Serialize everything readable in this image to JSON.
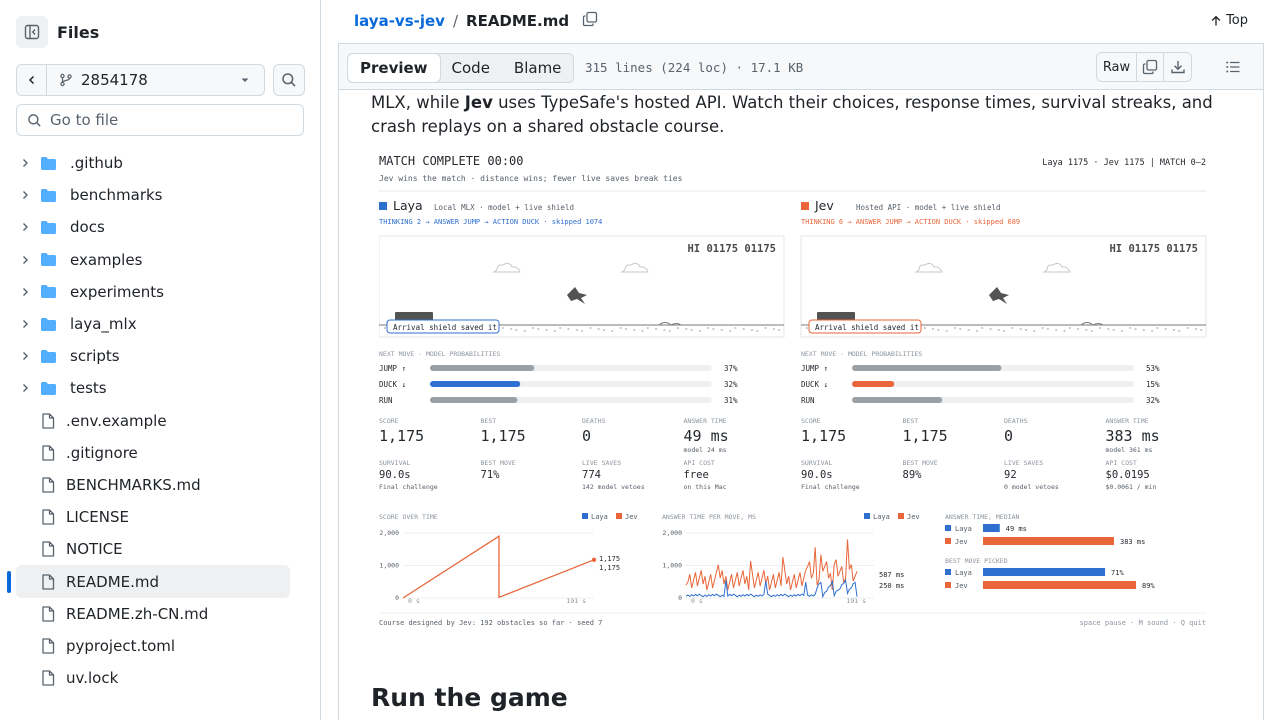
{
  "sidebar": {
    "title": "Files",
    "branch": "2854178",
    "goto_placeholder": "Go to file",
    "items": [
      {
        "label": ".github",
        "type": "dir"
      },
      {
        "label": "benchmarks",
        "type": "dir"
      },
      {
        "label": "docs",
        "type": "dir"
      },
      {
        "label": "examples",
        "type": "dir"
      },
      {
        "label": "experiments",
        "type": "dir"
      },
      {
        "label": "laya_mlx",
        "type": "dir"
      },
      {
        "label": "scripts",
        "type": "dir"
      },
      {
        "label": "tests",
        "type": "dir"
      },
      {
        "label": ".env.example",
        "type": "file"
      },
      {
        "label": ".gitignore",
        "type": "file"
      },
      {
        "label": "BENCHMARKS.md",
        "type": "file"
      },
      {
        "label": "LICENSE",
        "type": "file"
      },
      {
        "label": "NOTICE",
        "type": "file"
      },
      {
        "label": "README.md",
        "type": "file",
        "active": true
      },
      {
        "label": "README.zh-CN.md",
        "type": "file"
      },
      {
        "label": "pyproject.toml",
        "type": "file"
      },
      {
        "label": "uv.lock",
        "type": "file"
      }
    ]
  },
  "header": {
    "repo": "laya-vs-jev",
    "separator": "/",
    "file": "README.md",
    "top_label": "Top"
  },
  "filebar": {
    "tabs": [
      "Preview",
      "Code",
      "Blame"
    ],
    "info": "315 lines (224 loc) · 17.1 KB",
    "raw_label": "Raw"
  },
  "content": {
    "para_part1": "MLX, while ",
    "para_bold": "Jev",
    "para_part2": " uses TypeSafe's hosted API. Watch their choices, response times, survival streaks, and crash replays on a shared obstacle course.",
    "heading": "Run the game"
  },
  "game": {
    "title": "MATCH COMPLETE  00:00",
    "subtitle": "Jev wins the match  ·  distance wins; fewer live saves break ties",
    "scoreline": "Laya 1175  ·  Jev 1175   |  MATCH 0–2",
    "hi": "HI 01175 01175",
    "probs_title": "NEXT MOVE · MODEL PROBABILITIES",
    "footer_left": "Course designed by Jev: 192 obstacles so far · seed 7",
    "footer_right": "space pause · M sound · Q quit",
    "colors": {
      "laya": "#2f6fd0",
      "jev": "#e8663a",
      "gray": "#9aa0a6"
    },
    "players": [
      {
        "name": "Laya",
        "desc": "Local MLX · model + live shield",
        "trace": "THINKING 2  →  ANSWER JUMP  →  ACTION DUCK  ·  skipped 1074",
        "badge": "Arrival shield saved it",
        "probs": [
          {
            "label": "JUMP  ↑",
            "pct": "37%",
            "v": 0.37,
            "hl": false
          },
          {
            "label": "DUCK  ↓",
            "pct": "32%",
            "v": 0.32,
            "hl": true
          },
          {
            "label": "RUN",
            "pct": "31%",
            "v": 0.31,
            "hl": false
          }
        ],
        "stats": [
          {
            "label": "SCORE",
            "value": "1,175",
            "sub": ""
          },
          {
            "label": "BEST",
            "value": "1,175",
            "sub": ""
          },
          {
            "label": "DEATHS",
            "value": "0",
            "sub": ""
          },
          {
            "label": "ANSWER TIME",
            "value": "49 ms",
            "sub": "model 24 ms"
          }
        ],
        "stats2": [
          {
            "label": "SURVIVAL",
            "value": "90.0s",
            "sub": "Final challenge"
          },
          {
            "label": "BEST MOVE",
            "value": "71%",
            "sub": ""
          },
          {
            "label": "LIVE SAVES",
            "value": "774",
            "sub": "142 model vetoes"
          },
          {
            "label": "API COST",
            "value": "free",
            "sub": "on this Mac"
          }
        ]
      },
      {
        "name": "Jev",
        "desc": "Hosted API · model + live shield",
        "trace": "THINKING 6  →  ANSWER JUMP  →  ACTION DUCK  ·  skipped 689",
        "badge": "Arrival shield saved it",
        "probs": [
          {
            "label": "JUMP  ↑",
            "pct": "53%",
            "v": 0.53,
            "hl": false
          },
          {
            "label": "DUCK  ↓",
            "pct": "15%",
            "v": 0.15,
            "hl": true
          },
          {
            "label": "RUN",
            "pct": "32%",
            "v": 0.32,
            "hl": false
          }
        ],
        "stats": [
          {
            "label": "SCORE",
            "value": "1,175",
            "sub": ""
          },
          {
            "label": "BEST",
            "value": "1,175",
            "sub": ""
          },
          {
            "label": "DEATHS",
            "value": "0",
            "sub": ""
          },
          {
            "label": "ANSWER TIME",
            "value": "383 ms",
            "sub": "model 361 ms"
          }
        ],
        "stats2": [
          {
            "label": "SURVIVAL",
            "value": "90.0s",
            "sub": "Final challenge"
          },
          {
            "label": "BEST MOVE",
            "value": "89%",
            "sub": ""
          },
          {
            "label": "LIVE SAVES",
            "value": "92",
            "sub": "0 model vetoes"
          },
          {
            "label": "API COST",
            "value": "$0.0195",
            "sub": "$0.0061 / min"
          }
        ]
      }
    ]
  },
  "chart_data": [
    {
      "type": "line",
      "title": "SCORE OVER TIME",
      "series": [
        {
          "name": "Laya"
        },
        {
          "name": "Jev"
        }
      ],
      "ylim": [
        0,
        2000
      ],
      "yticks": [
        "2,000",
        "1,000",
        "0"
      ],
      "xticks": [
        "0 s",
        "191 s"
      ],
      "end_labels": [
        "1,175",
        "1,175"
      ]
    },
    {
      "type": "line",
      "title": "ANSWER TIME PER MOVE, MS",
      "series": [
        {
          "name": "Laya"
        },
        {
          "name": "Jev"
        }
      ],
      "ylim": [
        0,
        2000
      ],
      "yticks": [
        "2,000",
        "1,000",
        "0"
      ],
      "xticks": [
        "0 s",
        "191 s"
      ],
      "end_labels": [
        "587 ms",
        "250 ms"
      ]
    },
    {
      "type": "bar",
      "title": "ANSWER TIME, MEDIAN",
      "categories": [
        "Laya",
        "Jev"
      ],
      "values": [
        49,
        383
      ],
      "labels": [
        "49 ms",
        "383 ms"
      ]
    },
    {
      "type": "bar",
      "title": "BEST MOVE PICKED",
      "categories": [
        "Laya",
        "Jev"
      ],
      "values": [
        71,
        89
      ],
      "labels": [
        "71%",
        "89%"
      ]
    }
  ]
}
